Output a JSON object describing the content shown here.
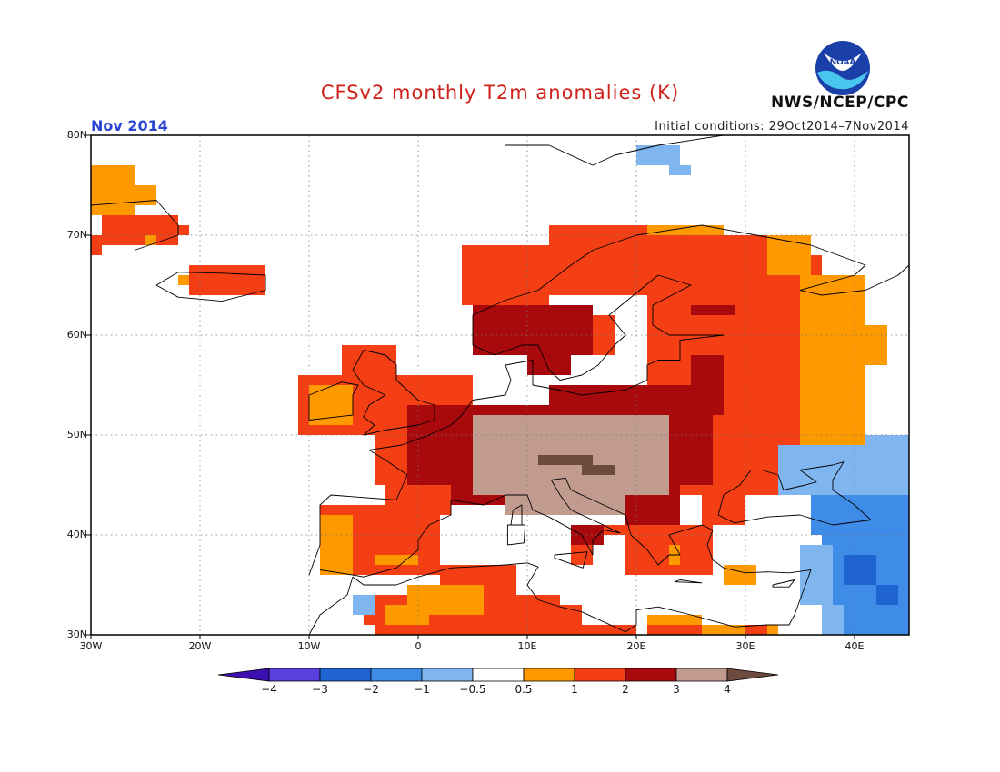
{
  "title": "CFSv2 monthly T2m anomalies (K)",
  "agency": "NWS/NCEP/CPC",
  "logo_text": "NOAA",
  "period": "Nov 2014",
  "initial_conditions": "Initial conditions: 29Oct2014–7Nov2014",
  "axes": {
    "lat_labels": [
      "80N",
      "70N",
      "60N",
      "50N",
      "40N",
      "30N"
    ],
    "lon_labels": [
      "30W",
      "20W",
      "10W",
      "0",
      "10E",
      "20E",
      "30E",
      "40E"
    ],
    "lon_range": [
      -30,
      45
    ],
    "lat_range": [
      30,
      80
    ]
  },
  "colorbar": {
    "labels": [
      "−4",
      "−3",
      "−2",
      "−1",
      "−0.5",
      "0.5",
      "1",
      "2",
      "3",
      "4"
    ],
    "colors": [
      "#3c0fb0",
      "#5a3fdc",
      "#1f64d0",
      "#3e8ce8",
      "#7fb6f0",
      "#ffffff",
      "#ff9900",
      "#f43f14",
      "#a8090c",
      "#c29b8f",
      "#6e4a3e"
    ]
  },
  "regions": {
    "palette": {
      "br": "#6e4a3e",
      "tn": "#c29b8f",
      "dr": "#a8090c",
      "rd": "#f43f14",
      "or": "#ff9900",
      "lb": "#7fb6f0",
      "mb": "#3e8ce8",
      "db": "#1f64d0"
    },
    "items": [
      {
        "c": "or",
        "lon": [
          -30,
          -26
        ],
        "lat": [
          72,
          77
        ]
      },
      {
        "c": "or",
        "lon": [
          -26,
          -24
        ],
        "lat": [
          73,
          75
        ]
      },
      {
        "c": "rd",
        "lon": [
          -29,
          -22
        ],
        "lat": [
          69,
          72
        ]
      },
      {
        "c": "rd",
        "lon": [
          -22,
          -21
        ],
        "lat": [
          70,
          71
        ]
      },
      {
        "c": "rd",
        "lon": [
          -30,
          -29
        ],
        "lat": [
          68,
          70
        ]
      },
      {
        "c": "or",
        "lon": [
          -25,
          -24
        ],
        "lat": [
          69,
          70
        ]
      },
      {
        "c": "rd",
        "lon": [
          -21,
          -14
        ],
        "lat": [
          64,
          67
        ]
      },
      {
        "c": "or",
        "lon": [
          -22,
          -21
        ],
        "lat": [
          65,
          66
        ]
      },
      {
        "c": "rd",
        "lon": [
          -11,
          5
        ],
        "lat": [
          50,
          56
        ]
      },
      {
        "c": "rd",
        "lon": [
          -7,
          -2
        ],
        "lat": [
          55,
          59
        ]
      },
      {
        "c": "or",
        "lon": [
          -10,
          -6
        ],
        "lat": [
          51,
          55
        ]
      },
      {
        "c": "rd",
        "lon": [
          -4,
          20
        ],
        "lat": [
          45,
          51
        ]
      },
      {
        "c": "dr",
        "lon": [
          -1,
          12
        ],
        "lat": [
          43,
          53
        ]
      },
      {
        "c": "dr",
        "lon": [
          3,
          10
        ],
        "lat": [
          43,
          46
        ]
      },
      {
        "c": "rd",
        "lon": [
          -3,
          3
        ],
        "lat": [
          42,
          45
        ]
      },
      {
        "c": "rd",
        "lon": [
          4,
          12
        ],
        "lat": [
          63,
          69
        ]
      },
      {
        "c": "rd",
        "lon": [
          12,
          24
        ],
        "lat": [
          64,
          71
        ]
      },
      {
        "c": "rd",
        "lon": [
          17,
          28
        ],
        "lat": [
          68,
          71
        ]
      },
      {
        "c": "or",
        "lon": [
          21,
          28
        ],
        "lat": [
          70,
          71
        ]
      },
      {
        "c": "dr",
        "lon": [
          5,
          16
        ],
        "lat": [
          58,
          63
        ]
      },
      {
        "c": "dr",
        "lon": [
          10,
          14
        ],
        "lat": [
          56,
          58
        ]
      },
      {
        "c": "rd",
        "lon": [
          16,
          18
        ],
        "lat": [
          58,
          62
        ]
      },
      {
        "c": "rd",
        "lon": [
          21,
          37
        ],
        "lat": [
          44,
          68
        ]
      },
      {
        "c": "rd",
        "lon": [
          27,
          33
        ],
        "lat": [
          68,
          70
        ]
      },
      {
        "c": "or",
        "lon": [
          32,
          36
        ],
        "lat": [
          66,
          70
        ]
      },
      {
        "c": "or",
        "lon": [
          35,
          41
        ],
        "lat": [
          48,
          66
        ]
      },
      {
        "c": "or",
        "lon": [
          41,
          43
        ],
        "lat": [
          57,
          61
        ]
      },
      {
        "c": "dr",
        "lon": [
          12,
          27
        ],
        "lat": [
          45,
          55
        ]
      },
      {
        "c": "dr",
        "lon": [
          19,
          24
        ],
        "lat": [
          41,
          45
        ]
      },
      {
        "c": "dr",
        "lon": [
          25,
          28
        ],
        "lat": [
          52,
          58
        ]
      },
      {
        "c": "dr",
        "lon": [
          25,
          29
        ],
        "lat": [
          62,
          63
        ]
      },
      {
        "c": "tn",
        "lon": [
          5,
          23
        ],
        "lat": [
          44,
          52
        ]
      },
      {
        "c": "tn",
        "lon": [
          8,
          19
        ],
        "lat": [
          42,
          44
        ]
      },
      {
        "c": "br",
        "lon": [
          11,
          16
        ],
        "lat": [
          47,
          48
        ]
      },
      {
        "c": "br",
        "lon": [
          15,
          18
        ],
        "lat": [
          46,
          47
        ]
      },
      {
        "c": "rd",
        "lon": [
          19,
          27
        ],
        "lat": [
          36,
          41
        ]
      },
      {
        "c": "rd",
        "lon": [
          26,
          30
        ],
        "lat": [
          41,
          44
        ]
      },
      {
        "c": "or",
        "lon": [
          23,
          24
        ],
        "lat": [
          37,
          39
        ]
      },
      {
        "c": "or",
        "lon": [
          28,
          31
        ],
        "lat": [
          35,
          37
        ]
      },
      {
        "c": "rd",
        "lon": [
          14,
          16
        ],
        "lat": [
          37,
          39
        ]
      },
      {
        "c": "dr",
        "lon": [
          14,
          17
        ],
        "lat": [
          39,
          41
        ]
      },
      {
        "c": "rd",
        "lon": [
          17,
          20
        ],
        "lat": [
          40,
          41
        ]
      },
      {
        "c": "rd",
        "lon": [
          -9,
          2
        ],
        "lat": [
          36,
          43
        ]
      },
      {
        "c": "or",
        "lon": [
          -9,
          -6
        ],
        "lat": [
          36,
          42
        ]
      },
      {
        "c": "or",
        "lon": [
          -4,
          0
        ],
        "lat": [
          37,
          38
        ]
      },
      {
        "c": "rd",
        "lon": [
          -5,
          13
        ],
        "lat": [
          31,
          34
        ]
      },
      {
        "c": "rd",
        "lon": [
          2,
          9
        ],
        "lat": [
          34,
          37
        ]
      },
      {
        "c": "or",
        "lon": [
          -1,
          6
        ],
        "lat": [
          32,
          35
        ]
      },
      {
        "c": "or",
        "lon": [
          -3,
          1
        ],
        "lat": [
          31,
          33
        ]
      },
      {
        "c": "rd",
        "lon": [
          -4,
          20
        ],
        "lat": [
          30,
          31
        ]
      },
      {
        "c": "rd",
        "lon": [
          9,
          15
        ],
        "lat": [
          31,
          33
        ]
      },
      {
        "c": "or",
        "lon": [
          21,
          26
        ],
        "lat": [
          30,
          32
        ]
      },
      {
        "c": "rd",
        "lon": [
          21,
          26
        ],
        "lat": [
          30,
          31
        ]
      },
      {
        "c": "or",
        "lon": [
          26,
          33
        ],
        "lat": [
          30,
          31
        ]
      },
      {
        "c": "rd",
        "lon": [
          30,
          32
        ],
        "lat": [
          30,
          31
        ]
      },
      {
        "c": "mb",
        "lon": [
          36,
          45
        ],
        "lat": [
          40,
          46
        ]
      },
      {
        "c": "lb",
        "lon": [
          33,
          45
        ],
        "lat": [
          44,
          49
        ]
      },
      {
        "c": "lb",
        "lon": [
          41,
          45
        ],
        "lat": [
          48,
          50
        ]
      },
      {
        "c": "mb",
        "lon": [
          37,
          45
        ],
        "lat": [
          30,
          40
        ]
      },
      {
        "c": "lb",
        "lon": [
          35,
          38
        ],
        "lat": [
          33,
          39
        ]
      },
      {
        "c": "lb",
        "lon": [
          37,
          39
        ],
        "lat": [
          30,
          33
        ]
      },
      {
        "c": "db",
        "lon": [
          39,
          42
        ],
        "lat": [
          35,
          38
        ]
      },
      {
        "c": "db",
        "lon": [
          42,
          44
        ],
        "lat": [
          33,
          35
        ]
      },
      {
        "c": "lb",
        "lon": [
          -6,
          -4
        ],
        "lat": [
          32,
          34
        ]
      },
      {
        "c": "lb",
        "lon": [
          20,
          24
        ],
        "lat": [
          77,
          79
        ]
      },
      {
        "c": "lb",
        "lon": [
          23,
          25
        ],
        "lat": [
          76,
          77
        ]
      }
    ]
  },
  "coastlines": [
    [
      [
        -10,
        36
      ],
      [
        -9,
        39
      ],
      [
        -9,
        43
      ],
      [
        -8,
        44
      ],
      [
        -2,
        43.5
      ],
      [
        -1,
        46
      ],
      [
        -3,
        47.5
      ],
      [
        -4.5,
        48.5
      ],
      [
        -1.5,
        49
      ],
      [
        1,
        50
      ],
      [
        3,
        51
      ],
      [
        4,
        52
      ],
      [
        5,
        53.5
      ],
      [
        8,
        54
      ],
      [
        8.5,
        55.5
      ],
      [
        8,
        57
      ],
      [
        10.5,
        57.5
      ],
      [
        10.5,
        55
      ],
      [
        13,
        54.5
      ],
      [
        15,
        54
      ],
      [
        19,
        54.5
      ],
      [
        21,
        55.5
      ],
      [
        21,
        57
      ],
      [
        22,
        57.5
      ],
      [
        24,
        57.5
      ],
      [
        24,
        59.5
      ],
      [
        28,
        60
      ],
      [
        23,
        60
      ],
      [
        21.5,
        61
      ],
      [
        21.5,
        63
      ],
      [
        25,
        65
      ],
      [
        22,
        66
      ],
      [
        17.5,
        62
      ],
      [
        19,
        60
      ],
      [
        18,
        59
      ],
      [
        16.5,
        57
      ],
      [
        15,
        56
      ],
      [
        13,
        55.5
      ],
      [
        12,
        56.5
      ],
      [
        11,
        59
      ],
      [
        9.5,
        59
      ],
      [
        7,
        58
      ],
      [
        5,
        59
      ],
      [
        5,
        62
      ],
      [
        8,
        63.5
      ],
      [
        11,
        64.5
      ],
      [
        14,
        67
      ],
      [
        16,
        68.5
      ],
      [
        20,
        70
      ],
      [
        26,
        71
      ],
      [
        31,
        70
      ],
      [
        36,
        69
      ],
      [
        41,
        67
      ],
      [
        40,
        66
      ],
      [
        35,
        64.5
      ],
      [
        37,
        64
      ],
      [
        41,
        64.5
      ],
      [
        44,
        66
      ],
      [
        45,
        67
      ]
    ],
    [
      [
        -5,
        58.5
      ],
      [
        -3,
        58
      ],
      [
        -2,
        57
      ],
      [
        -2,
        55.5
      ],
      [
        0,
        53.5
      ],
      [
        1.5,
        53
      ],
      [
        1.5,
        51.5
      ],
      [
        0,
        51
      ],
      [
        -3,
        50.5
      ],
      [
        -5,
        50
      ],
      [
        -4,
        51
      ],
      [
        -5,
        51.8
      ],
      [
        -4.5,
        53
      ],
      [
        -3,
        54
      ],
      [
        -5,
        55
      ],
      [
        -6,
        56.5
      ],
      [
        -5,
        58.5
      ]
    ],
    [
      [
        -10,
        51.5
      ],
      [
        -6,
        52
      ],
      [
        -6,
        54
      ],
      [
        -5.5,
        55
      ],
      [
        -7,
        55.3
      ],
      [
        -10,
        54
      ],
      [
        -10,
        51.5
      ]
    ],
    [
      [
        -24,
        65
      ],
      [
        -22,
        66.3
      ],
      [
        -18,
        66.2
      ],
      [
        -14,
        66
      ],
      [
        -14,
        64.5
      ],
      [
        -18,
        63.4
      ],
      [
        -22,
        63.8
      ],
      [
        -24,
        65
      ]
    ],
    [
      [
        -9,
        36.5
      ],
      [
        -6,
        36
      ],
      [
        -5,
        35.8
      ],
      [
        -2,
        36.7
      ],
      [
        0,
        38.5
      ],
      [
        0,
        39.5
      ],
      [
        1,
        41
      ],
      [
        3,
        42
      ],
      [
        3,
        43.5
      ],
      [
        6,
        43
      ],
      [
        8,
        44
      ],
      [
        10,
        44
      ],
      [
        10.5,
        42.5
      ],
      [
        12,
        41.8
      ],
      [
        15,
        40
      ],
      [
        16,
        38
      ],
      [
        16,
        39.5
      ],
      [
        17,
        40.5
      ],
      [
        18.5,
        40.2
      ],
      [
        16,
        41.5
      ],
      [
        14,
        42.5
      ],
      [
        13,
        44
      ],
      [
        12.2,
        45.5
      ],
      [
        13.5,
        45.7
      ],
      [
        14,
        44.5
      ],
      [
        16,
        43.5
      ],
      [
        19,
        42
      ],
      [
        19.5,
        40
      ],
      [
        21,
        38.5
      ],
      [
        22,
        37
      ],
      [
        23,
        38
      ],
      [
        24,
        38
      ],
      [
        23,
        40
      ],
      [
        26,
        41
      ],
      [
        27,
        40.5
      ],
      [
        26.5,
        39
      ],
      [
        27,
        37.5
      ],
      [
        28,
        36.7
      ],
      [
        30,
        36.2
      ],
      [
        32,
        36.3
      ],
      [
        34,
        36.2
      ],
      [
        36,
        36.5
      ],
      [
        35.5,
        35
      ],
      [
        34.5,
        32
      ],
      [
        34,
        31
      ],
      [
        32,
        31
      ],
      [
        29,
        30.8
      ]
    ],
    [
      [
        -10,
        30
      ],
      [
        -9,
        32
      ],
      [
        -6.5,
        34
      ],
      [
        -6,
        35.8
      ],
      [
        -5,
        35
      ],
      [
        -2,
        35
      ],
      [
        0,
        35.8
      ],
      [
        3,
        36.7
      ],
      [
        8,
        37
      ],
      [
        10,
        37.2
      ],
      [
        11,
        36.8
      ],
      [
        10,
        35
      ],
      [
        11,
        33.5
      ],
      [
        13,
        32.8
      ],
      [
        15,
        32.3
      ],
      [
        19,
        30.3
      ],
      [
        20,
        31
      ],
      [
        20,
        32.5
      ],
      [
        22,
        32.8
      ],
      [
        25,
        32
      ],
      [
        29,
        30.8
      ]
    ],
    [
      [
        27.5,
        42
      ],
      [
        28,
        44
      ],
      [
        29.5,
        45
      ],
      [
        30.5,
        46.5
      ],
      [
        31.5,
        46.5
      ],
      [
        33,
        46
      ],
      [
        33.5,
        44.5
      ],
      [
        35.5,
        45
      ],
      [
        36.5,
        45.3
      ],
      [
        35,
        46.5
      ],
      [
        38,
        47
      ],
      [
        39,
        47.3
      ],
      [
        38,
        45.5
      ],
      [
        38,
        44.5
      ],
      [
        40,
        43
      ],
      [
        41.5,
        41.5
      ],
      [
        38,
        41
      ],
      [
        35,
        42
      ],
      [
        32,
        41.8
      ],
      [
        29,
        41.2
      ],
      [
        27.5,
        42
      ]
    ],
    [
      [
        8.5,
        41
      ],
      [
        9.5,
        41
      ],
      [
        9.5,
        43
      ],
      [
        8.7,
        42.5
      ],
      [
        8.5,
        41
      ]
    ],
    [
      [
        8.2,
        39
      ],
      [
        9.7,
        39.2
      ],
      [
        9.8,
        41
      ],
      [
        8.2,
        41
      ],
      [
        8.2,
        39
      ]
    ],
    [
      [
        12.5,
        38
      ],
      [
        15.5,
        38.3
      ],
      [
        15.1,
        36.7
      ],
      [
        12.5,
        37.7
      ],
      [
        12.5,
        38
      ]
    ],
    [
      [
        23.5,
        35.3
      ],
      [
        26,
        35.2
      ],
      [
        24,
        35.5
      ],
      [
        23.5,
        35.3
      ]
    ],
    [
      [
        32.5,
        35
      ],
      [
        34.5,
        35.5
      ],
      [
        34,
        34.8
      ],
      [
        32.5,
        34.8
      ],
      [
        32.5,
        35
      ]
    ],
    [
      [
        8,
        79
      ],
      [
        12,
        79
      ],
      [
        16,
        77
      ],
      [
        18,
        78
      ],
      [
        22,
        79
      ],
      [
        28,
        80
      ]
    ],
    [
      [
        -30,
        73
      ],
      [
        -24,
        73.5
      ],
      [
        -22,
        71
      ],
      [
        -22,
        70
      ],
      [
        -26,
        68.5
      ]
    ]
  ]
}
